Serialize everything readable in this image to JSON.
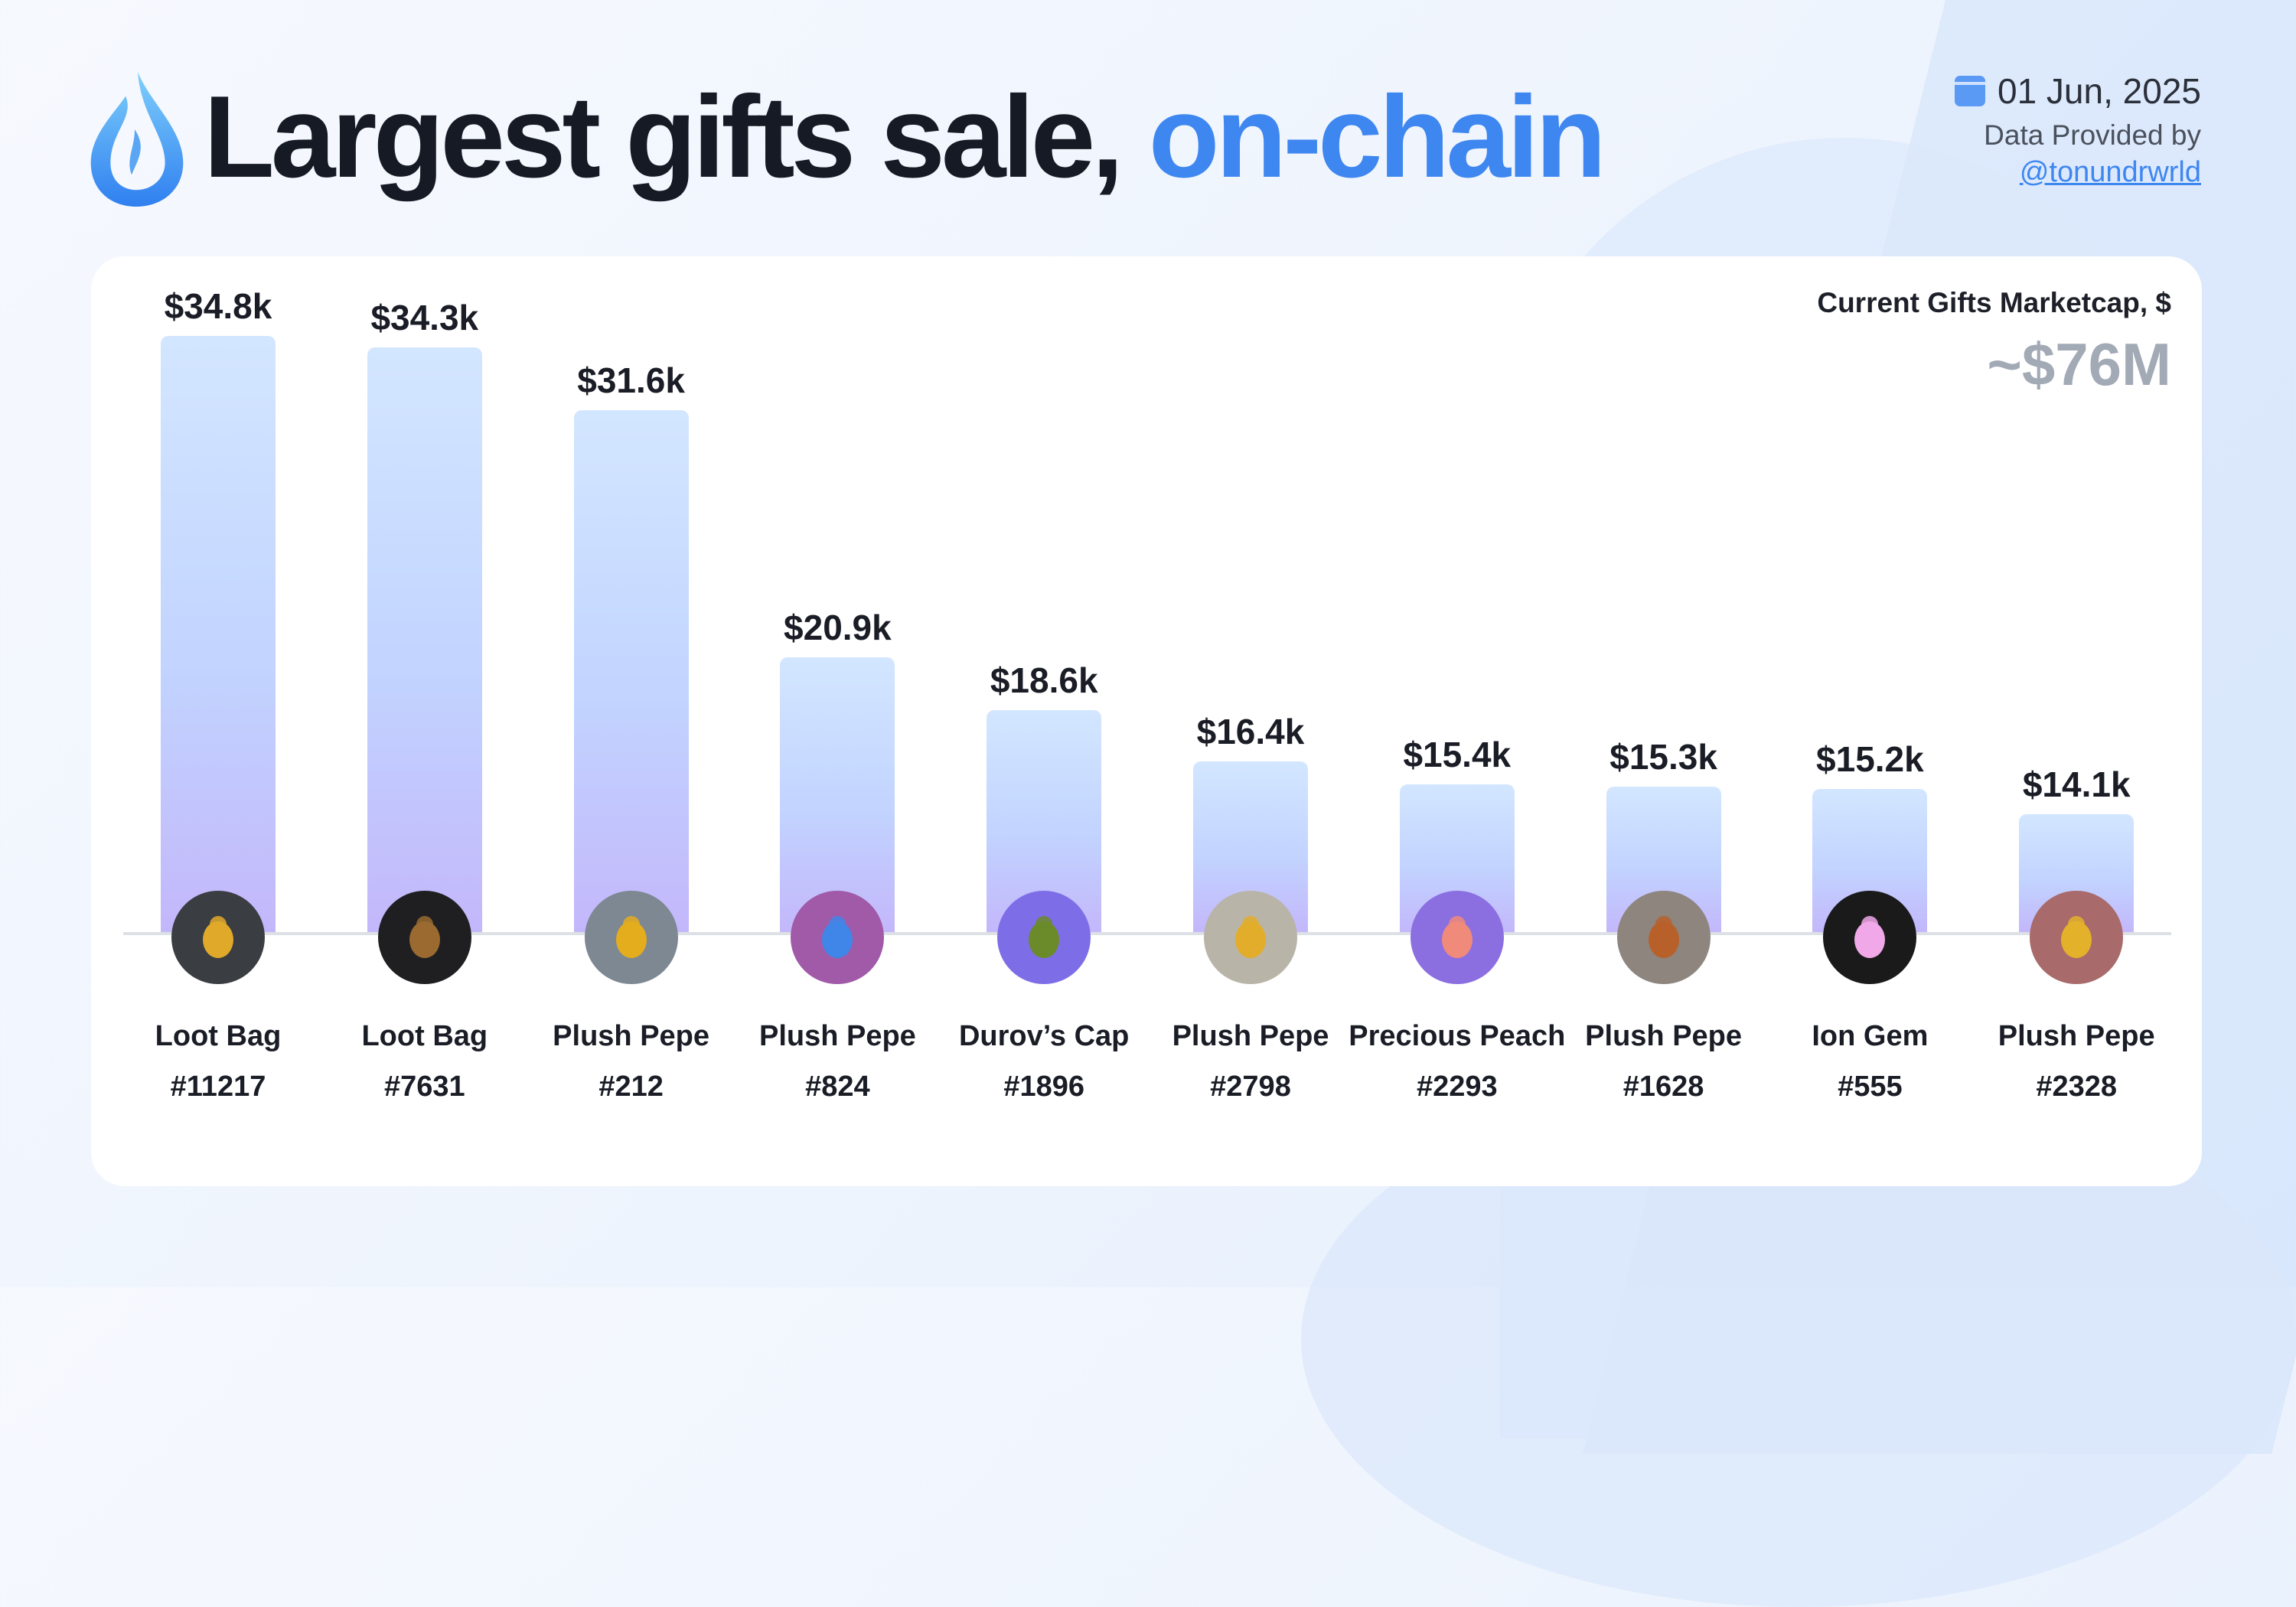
{
  "header": {
    "title_main": "Largest gifts sale,",
    "title_accent": "on-chain",
    "date": "01 Jun, 2025",
    "provided_by": "Data Provided by",
    "handle": "@tonundrwrld"
  },
  "marketcap": {
    "label": "Current Gifts Marketcap, $",
    "value": "~$76M"
  },
  "colors": {
    "accent": "#3e86f0",
    "bar_top": "#d3e6ff",
    "bar_bottom": "#c3b7fb"
  },
  "chart_data": {
    "type": "bar",
    "title": "Largest gifts sale, on-chain",
    "ylim": [
      9,
      35
    ],
    "grid": false,
    "categories": [
      "Loot Bag #11217",
      "Loot Bag #7631",
      "Plush Pepe #212",
      "Plush Pepe #824",
      "Durov’s Cap #1896",
      "Plush Pepe #2798",
      "Precious Peach #2293",
      "Plush Pepe #1628",
      "Ion Gem #555",
      "Plush Pepe #2328"
    ],
    "values": [
      34.8,
      34.3,
      31.6,
      20.9,
      18.6,
      16.4,
      15.4,
      15.3,
      15.2,
      14.1
    ],
    "unit": "thousand USD",
    "items": [
      {
        "name": "Loot Bag",
        "number": "#11217",
        "label": "$34.8k",
        "icon": "loot-bag-icon",
        "icon_bg": "#3a3d42",
        "icon_fg": "#e0a92a"
      },
      {
        "name": "Loot Bag",
        "number": "#7631",
        "label": "$34.3k",
        "icon": "loot-bag-icon",
        "icon_bg": "#1f1f21",
        "icon_fg": "#9a6a30"
      },
      {
        "name": "Plush Pepe",
        "number": "#212",
        "label": "$31.6k",
        "icon": "plush-pepe-icon",
        "icon_bg": "#7d8893",
        "icon_fg": "#e4ad1e"
      },
      {
        "name": "Plush Pepe",
        "number": "#824",
        "label": "$20.9k",
        "icon": "plush-pepe-icon",
        "icon_bg": "#a05aa8",
        "icon_fg": "#3f86e8"
      },
      {
        "name": "Durov’s Cap",
        "number": "#1896",
        "label": "$18.6k",
        "icon": "durovs-cap-icon",
        "icon_bg": "#7d6ee8",
        "icon_fg": "#6b8a2a"
      },
      {
        "name": "Plush Pepe",
        "number": "#2798",
        "label": "$16.4k",
        "icon": "plush-pepe-icon",
        "icon_bg": "#b9b4a8",
        "icon_fg": "#e2ad2a"
      },
      {
        "name": "Precious Peach",
        "number": "#2293",
        "label": "$15.4k",
        "icon": "precious-peach-icon",
        "icon_bg": "#8b6fe0",
        "icon_fg": "#f08a7a"
      },
      {
        "name": "Plush Pepe",
        "number": "#1628",
        "label": "$15.3k",
        "icon": "plush-pepe-icon",
        "icon_bg": "#8d857e",
        "icon_fg": "#b8602a"
      },
      {
        "name": "Ion Gem",
        "number": "#555",
        "label": "$15.2k",
        "icon": "ion-gem-icon",
        "icon_bg": "#1a1a1b",
        "icon_fg": "#f0a8e8"
      },
      {
        "name": "Plush Pepe",
        "number": "#2328",
        "label": "$14.1k",
        "icon": "plush-pepe-icon",
        "icon_bg": "#a86a6a",
        "icon_fg": "#e4b12a"
      }
    ]
  }
}
